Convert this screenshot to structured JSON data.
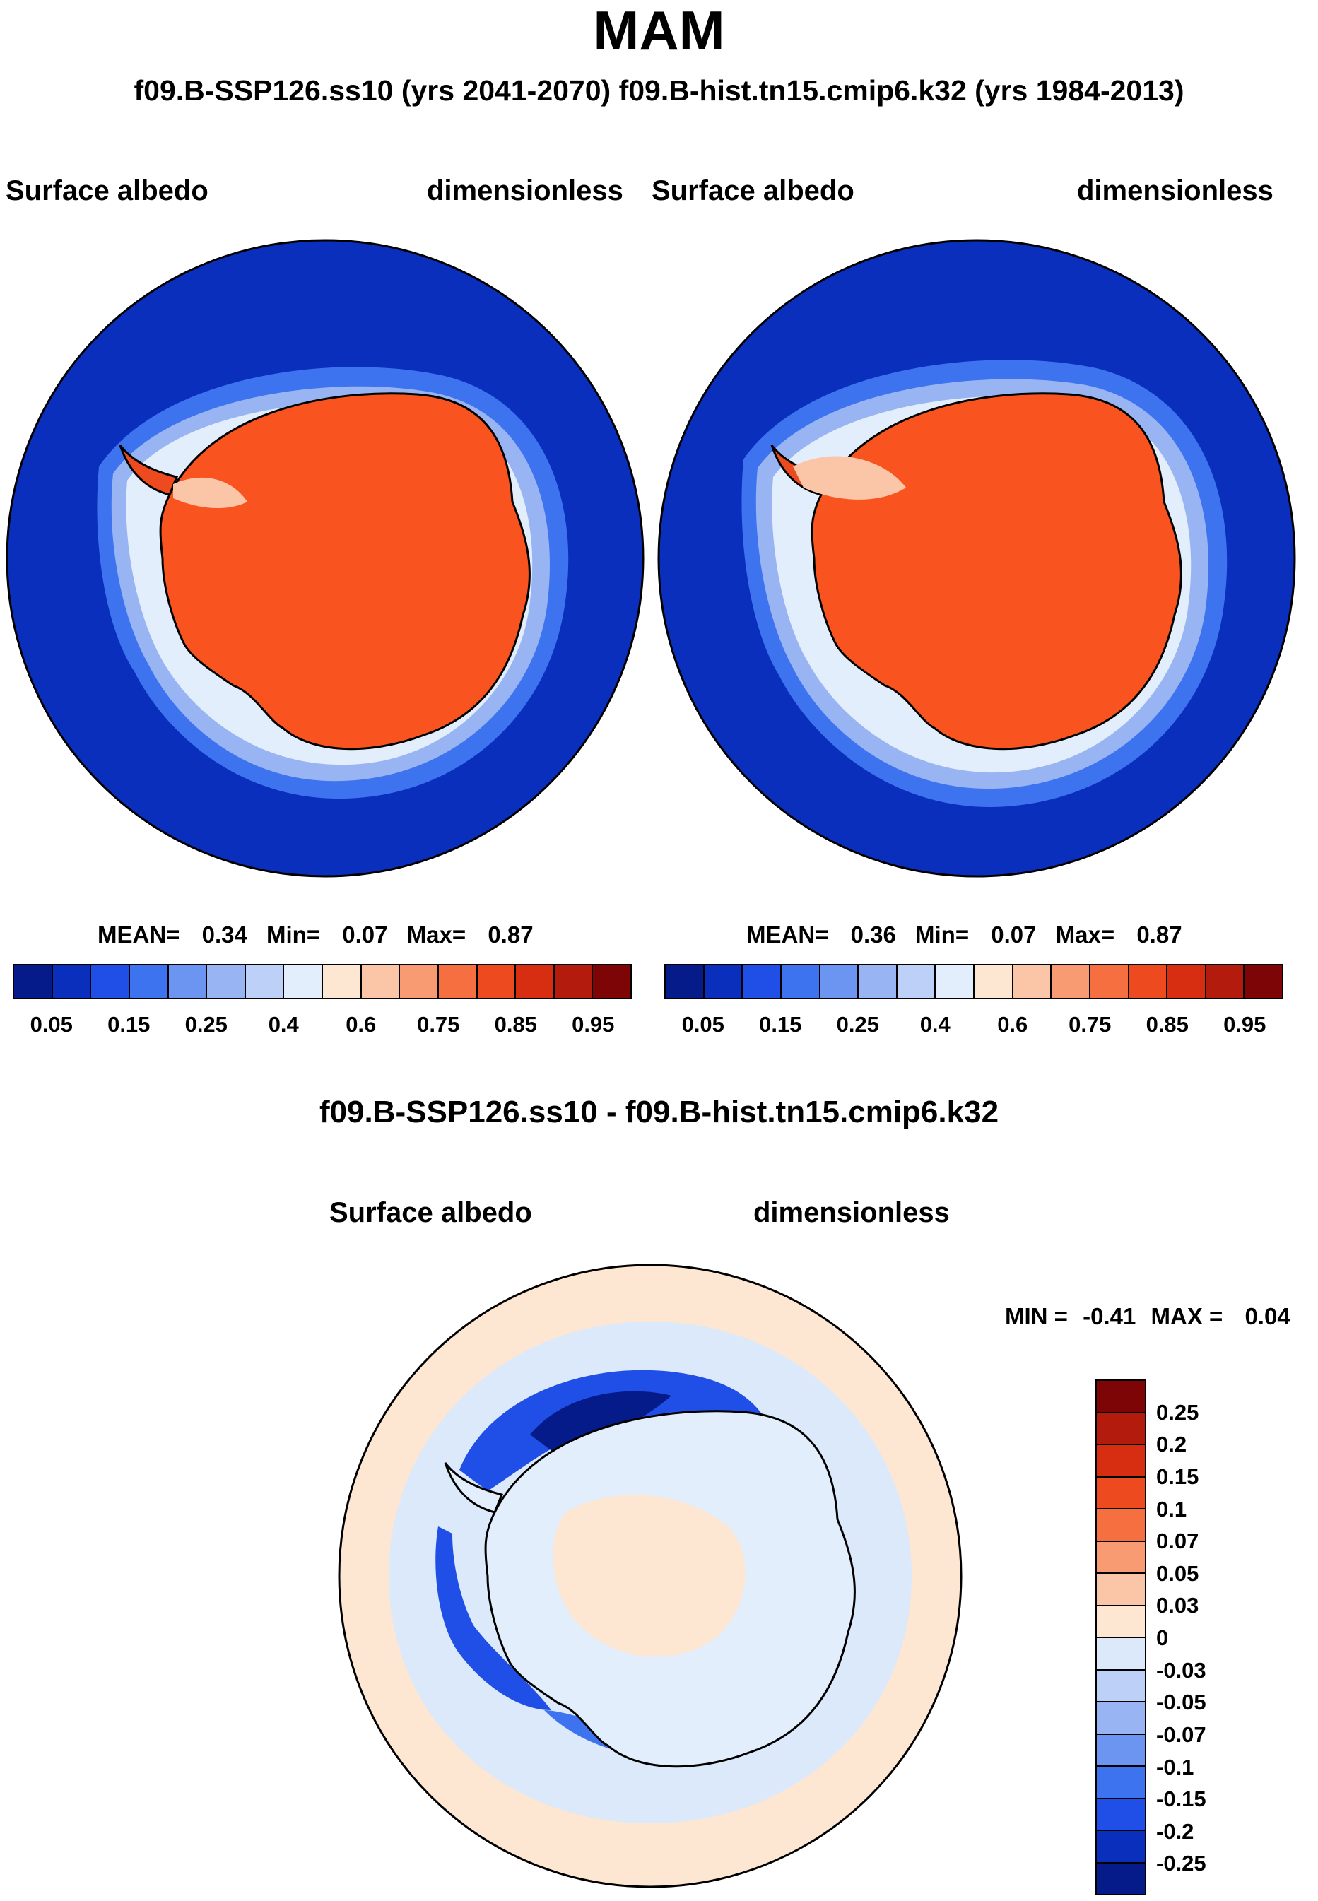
{
  "title": "MAM",
  "subtitle": "f09.B-SSP126.ss10 (yrs 2041-2070)  f09.B-hist.tn15.cmip6.k32 (yrs 1984-2013)",
  "panels": [
    {
      "left_label": "Surface albedo",
      "right_label": "dimensionless",
      "mean_label": "MEAN=",
      "mean": "0.34",
      "min_label": "Min=",
      "min": "0.07",
      "max_label": "Max=",
      "max": "0.87",
      "ocean_color": "#0a2fbd"
    },
    {
      "left_label": "Surface albedo",
      "right_label": "dimensionless",
      "mean_label": "MEAN=",
      "mean": "0.36",
      "min_label": "Min=",
      "min": "0.07",
      "max_label": "Max=",
      "max": "0.87",
      "ocean_color": "#0a2fbd"
    }
  ],
  "colorbar": {
    "colors": [
      "#061b8a",
      "#0a2fbd",
      "#1f4fe6",
      "#3e73f0",
      "#6b95f0",
      "#99b4f2",
      "#bdd0f7",
      "#e3eefc",
      "#fde6d2",
      "#fbc6a8",
      "#f89a72",
      "#f56f40",
      "#ee4a1f",
      "#d72e12",
      "#b31c0c",
      "#7e0505"
    ],
    "ticks": [
      "0.05",
      "0.15",
      "0.25",
      "0.4",
      "0.6",
      "0.75",
      "0.85",
      "0.95"
    ]
  },
  "diff": {
    "title": "f09.B-SSP126.ss10 - f09.B-hist.tn15.cmip6.k32",
    "left_label": "Surface albedo",
    "right_label": "dimensionless",
    "min_label": "MIN =",
    "min": "-0.41",
    "max_label": "MAX =",
    "max": "0.04",
    "ocean_color": "#dbe9fb",
    "colorbar": {
      "colors": [
        "#7e0505",
        "#b31c0c",
        "#d72e12",
        "#ee4a1f",
        "#f56f40",
        "#f89a72",
        "#fbc6a8",
        "#fde6d2",
        "#dbe9fb",
        "#bdd0f7",
        "#99b4f2",
        "#6b95f0",
        "#3e73f0",
        "#1f4fe6",
        "#0a2fbd",
        "#061b8a"
      ],
      "ticks": [
        "0.25",
        "0.2",
        "0.15",
        "0.1",
        "0.07",
        "0.05",
        "0.03",
        "0",
        "-0.03",
        "-0.05",
        "-0.07",
        "-0.1",
        "-0.15",
        "-0.2",
        "-0.25"
      ]
    }
  }
}
